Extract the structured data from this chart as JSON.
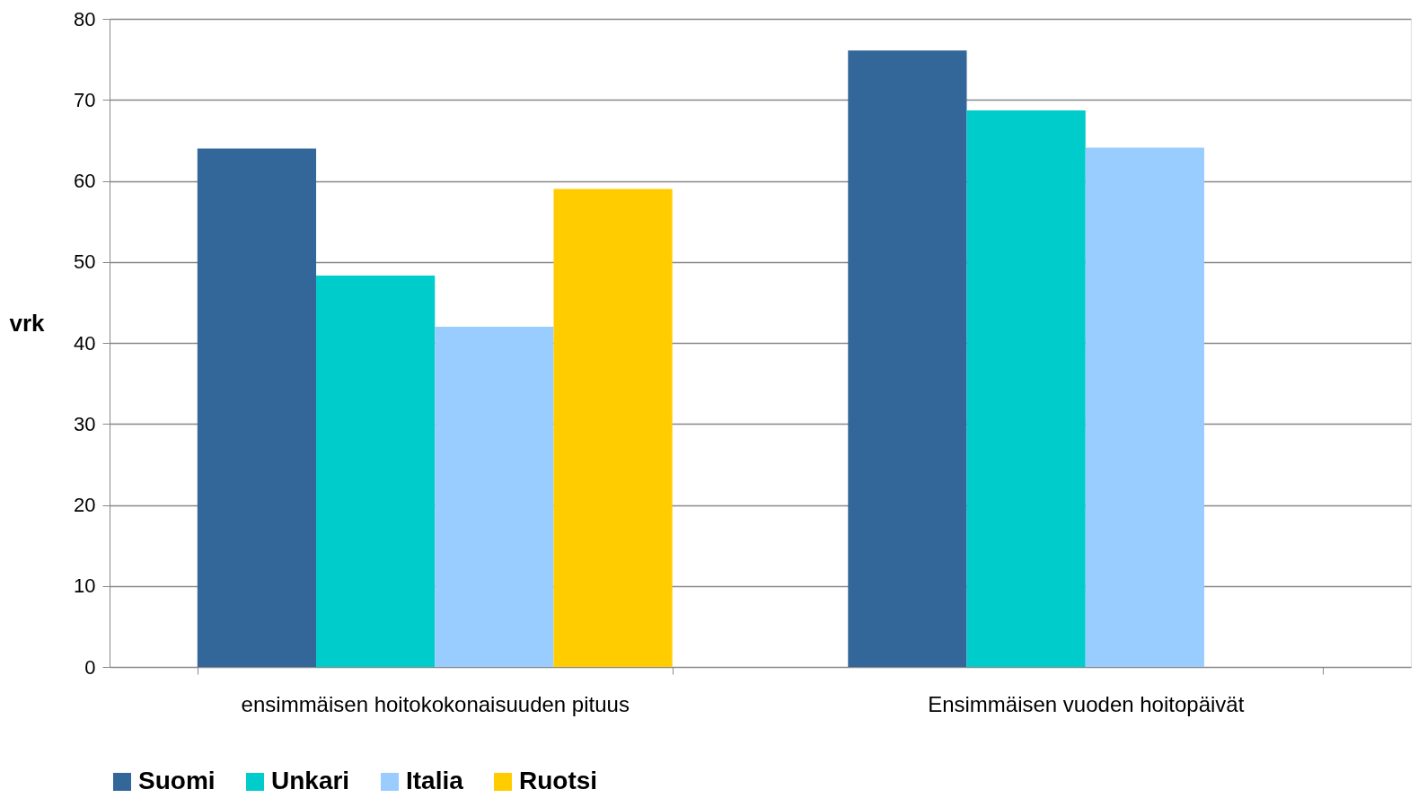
{
  "chart_data": {
    "type": "bar",
    "ylabel": "vrk",
    "categories": [
      "ensimmäisen hoitokokonaisuuden pituus",
      "Ensimmäisen vuoden hoitopäivät"
    ],
    "series": [
      {
        "name": "Suomi",
        "color": "#336699",
        "values": [
          64,
          76.1
        ]
      },
      {
        "name": "Unkari",
        "color": "#00cccc",
        "values": [
          48.3,
          68.7
        ]
      },
      {
        "name": "Italia",
        "color": "#99ccff",
        "values": [
          42,
          64.1
        ]
      },
      {
        "name": "Ruotsi",
        "color": "#ffcc00",
        "values": [
          59,
          null
        ]
      }
    ],
    "ylim": [
      0,
      80
    ],
    "yticks": [
      0,
      10,
      20,
      30,
      40,
      50,
      60,
      70,
      80
    ],
    "grid": "y",
    "legend": "bottom"
  }
}
